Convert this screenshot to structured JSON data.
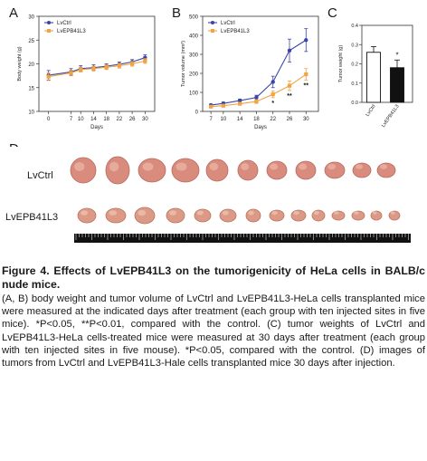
{
  "panels": {
    "a": "A",
    "b": "B",
    "c": "C",
    "d": "D"
  },
  "chart_data": [
    {
      "type": "line",
      "panel": "A",
      "ylabel": "Body weight (g)",
      "xlabel": "Days",
      "x": [
        0,
        7,
        10,
        14,
        18,
        22,
        26,
        30
      ],
      "ylim": [
        10,
        30
      ],
      "yticks": [
        10,
        15,
        20,
        25,
        30
      ],
      "series": [
        {
          "name": "LvCtrl",
          "color": "#3b45a8",
          "values": [
            17.6,
            18.3,
            19.0,
            19.2,
            19.5,
            19.9,
            20.4,
            21.3
          ],
          "errors": [
            1.0,
            0.7,
            0.6,
            0.6,
            0.5,
            0.5,
            0.5,
            0.6
          ]
        },
        {
          "name": "LvEPB41L3",
          "color": "#f0a442",
          "values": [
            17.3,
            18.1,
            18.8,
            19.0,
            19.3,
            19.6,
            20.0,
            20.6
          ],
          "errors": [
            0.8,
            0.6,
            0.5,
            0.5,
            0.5,
            0.5,
            0.5,
            0.5
          ]
        }
      ],
      "legend": "top-left"
    },
    {
      "type": "line",
      "panel": "B",
      "ylabel": "Tumor volume (mm³)",
      "xlabel": "Days",
      "x": [
        7,
        10,
        14,
        18,
        22,
        26,
        30
      ],
      "ylim": [
        0,
        500
      ],
      "yticks": [
        0,
        100,
        200,
        300,
        400,
        500
      ],
      "series": [
        {
          "name": "LvCtrl",
          "color": "#3b45a8",
          "values": [
            33,
            42,
            57,
            73,
            155,
            320,
            375
          ],
          "errors": [
            6,
            7,
            8,
            12,
            30,
            60,
            60
          ]
        },
        {
          "name": "LvEPB41L3",
          "color": "#f0a442",
          "values": [
            25,
            30,
            40,
            52,
            90,
            135,
            195
          ],
          "errors": [
            5,
            6,
            7,
            10,
            18,
            25,
            30
          ]
        }
      ],
      "significance": [
        {
          "x": 22,
          "label": "*"
        },
        {
          "x": 26,
          "label": "**"
        },
        {
          "x": 30,
          "label": "**"
        }
      ],
      "legend": "top-left"
    },
    {
      "type": "bar",
      "panel": "C",
      "ylabel": "Tumor weight (g)",
      "categories": [
        "LvCtrl",
        "LvEPB41L3"
      ],
      "values": [
        0.26,
        0.18
      ],
      "errors": [
        0.03,
        0.04
      ],
      "colors": [
        "#ffffff",
        "#111111"
      ],
      "ylim": [
        0,
        0.4
      ],
      "yticks": [
        0.0,
        0.1,
        0.2,
        0.3,
        0.4
      ],
      "significance": [
        {
          "category": "LvEPB41L3",
          "label": "*"
        }
      ]
    }
  ],
  "photo": {
    "row_labels": [
      "LvCtrl",
      "LvEPB41L3"
    ]
  },
  "caption": {
    "title": "Figure 4. Effects of LvEPB41L3 on the tumorigenicity of HeLa cells in BALB/c nude mice.",
    "body": "(A, B) body weight and tumor volume of LvCtrl and LvEPB41L3-HeLa cells transplanted mice were measured at the indicated days after treatment (each group with ten injected sites in five mice). *P<0.05, **P<0.01, compared with the control. (C) tumor weights of LvCtrl and LvEPB41L3-HeLa cells-treated mice were measured at 30 days after treatment (each group with ten injected sites in five mouse). *P<0.05, compared with the control. (D) images of tumors from LvCtrl and LvEPB41L3-Hale cells transplanted mice 30 days after injection."
  }
}
